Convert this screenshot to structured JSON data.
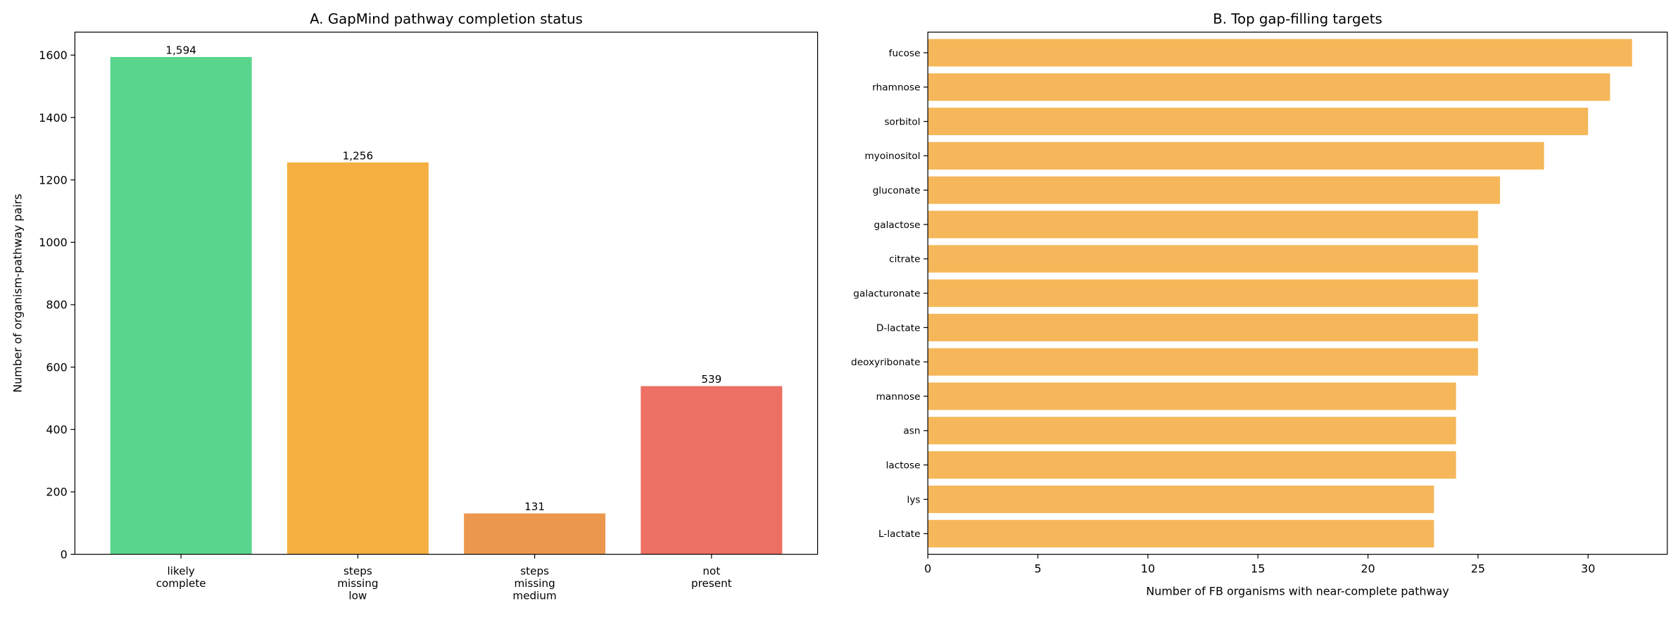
{
  "chart_data": [
    {
      "type": "bar",
      "title": "A. GapMind pathway completion status",
      "y_label": "Number of organism-pathway pairs",
      "categories": [
        "likely\ncomplete",
        "steps\nmissing\nlow",
        "steps\nmissing\nmedium",
        "not\npresent"
      ],
      "values": [
        1594,
        1256,
        131,
        539
      ],
      "value_labels": [
        "1,594",
        "1,256",
        "131",
        "539"
      ],
      "colors": [
        "#58d68d",
        "#f5b041",
        "#eb984e",
        "#ec7063"
      ],
      "ylim": [
        0,
        1673.7
      ],
      "yticks": [
        0,
        200,
        400,
        600,
        800,
        1000,
        1200,
        1400,
        1600
      ]
    },
    {
      "type": "barh",
      "title": "B. Top gap-filling targets",
      "x_label": "Number of FB organisms with near-complete pathway",
      "categories": [
        "fucose",
        "rhamnose",
        "sorbitol",
        "myoinositol",
        "gluconate",
        "galactose",
        "citrate",
        "galacturonate",
        "D-lactate",
        "deoxyribonate",
        "mannose",
        "asn",
        "lactose",
        "lys",
        "L-lactate"
      ],
      "values": [
        32,
        31,
        30,
        28,
        26,
        25,
        25,
        25,
        25,
        25,
        24,
        24,
        24,
        23,
        23
      ],
      "color": "#f5b75a",
      "xlim": [
        0,
        33.6
      ],
      "xticks": [
        0,
        5,
        10,
        15,
        20,
        25,
        30
      ]
    }
  ]
}
